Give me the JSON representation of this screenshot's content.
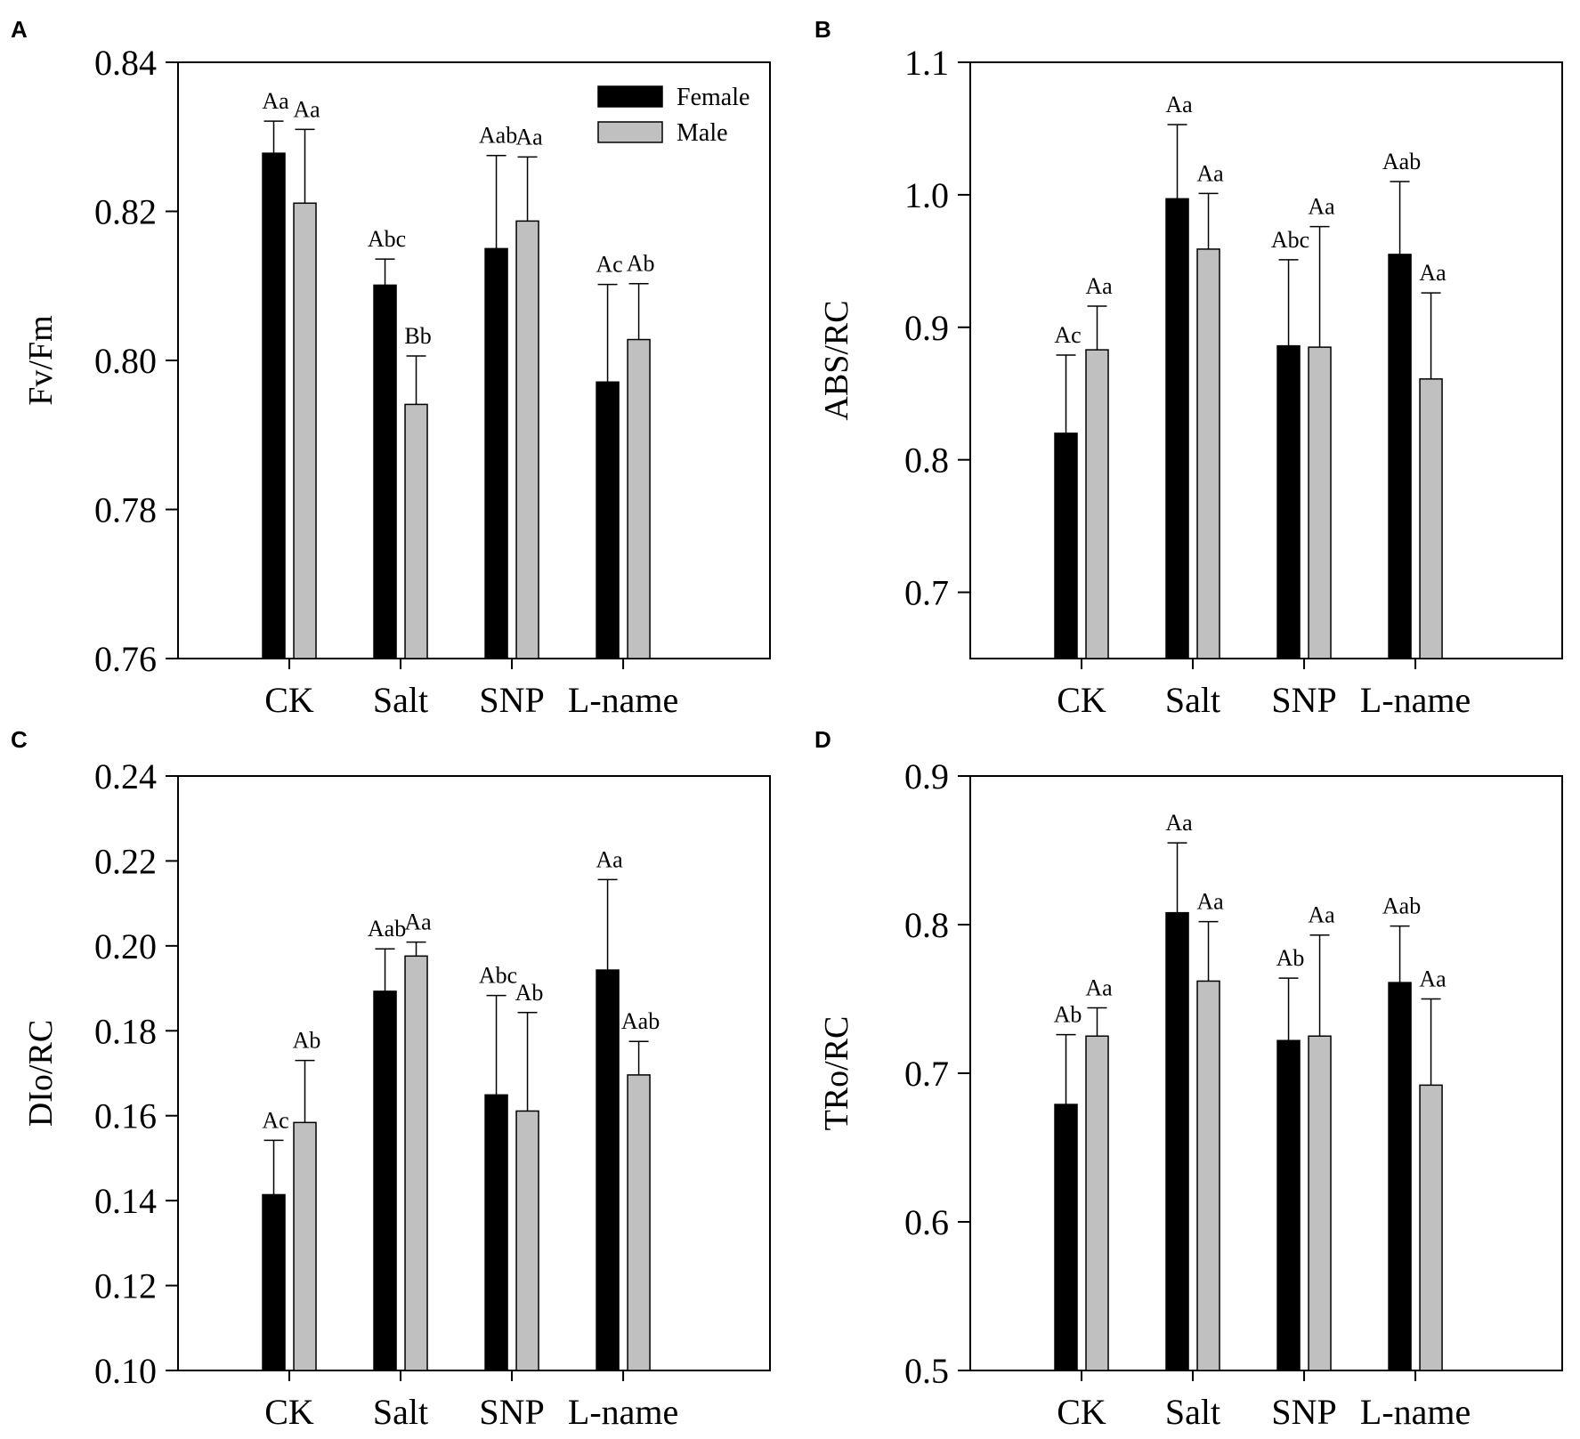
{
  "colors": {
    "female": "#000000",
    "male": "#c0c0c0",
    "axis": "#000000"
  },
  "chart_data": [
    {
      "id": "A",
      "type": "bar",
      "panel_label": "A",
      "ylabel": "Fv/Fm",
      "categories": [
        "CK",
        "Salt",
        "SNP",
        "L-name"
      ],
      "ylim": [
        0.76,
        0.84
      ],
      "yticks": [
        0.76,
        0.78,
        0.8,
        0.82,
        0.84
      ],
      "ytick_labels": [
        "0.76",
        "0.78",
        "0.80",
        "0.82",
        "0.84"
      ],
      "legend": {
        "position": "top-right",
        "entries": [
          "Female",
          "Male"
        ]
      },
      "series": [
        {
          "name": "Female",
          "values": [
            0.8278,
            0.8101,
            0.815,
            0.7971
          ],
          "errors": [
            0.0043,
            0.0035,
            0.0125,
            0.0131
          ],
          "labels": [
            "Aa",
            "Abc",
            "Aab",
            "Ac"
          ]
        },
        {
          "name": "Male",
          "values": [
            0.8211,
            0.7941,
            0.8187,
            0.8028
          ],
          "errors": [
            0.0099,
            0.0065,
            0.0086,
            0.0075
          ],
          "labels": [
            "Aa",
            "Bb",
            "Aa",
            "Ab"
          ]
        }
      ]
    },
    {
      "id": "B",
      "type": "bar",
      "panel_label": "B",
      "ylabel": "ABS/RC",
      "categories": [
        "CK",
        "Salt",
        "SNP",
        "L-name"
      ],
      "ylim": [
        0.65,
        1.1
      ],
      "yticks": [
        0.7,
        0.8,
        0.9,
        1.0,
        1.1
      ],
      "ytick_labels": [
        "0.7",
        "0.8",
        "0.9",
        "1.0",
        "1.1"
      ],
      "series": [
        {
          "name": "Female",
          "values": [
            0.82,
            0.997,
            0.886,
            0.955
          ],
          "errors": [
            0.059,
            0.056,
            0.065,
            0.055
          ],
          "labels": [
            "Ac",
            "Aa",
            "Abc",
            "Aab"
          ]
        },
        {
          "name": "Male",
          "values": [
            0.883,
            0.959,
            0.885,
            0.861
          ],
          "errors": [
            0.033,
            0.042,
            0.091,
            0.065
          ],
          "labels": [
            "Aa",
            "Aa",
            "Aa",
            "Aa"
          ]
        }
      ]
    },
    {
      "id": "C",
      "type": "bar",
      "panel_label": "C",
      "ylabel": "DIo/RC",
      "categories": [
        "CK",
        "Salt",
        "SNP",
        "L-name"
      ],
      "ylim": [
        0.1,
        0.24
      ],
      "yticks": [
        0.1,
        0.12,
        0.14,
        0.16,
        0.18,
        0.2,
        0.22,
        0.24
      ],
      "ytick_labels": [
        "0.10",
        "0.12",
        "0.14",
        "0.16",
        "0.18",
        "0.20",
        "0.22",
        "0.24"
      ],
      "series": [
        {
          "name": "Female",
          "values": [
            0.1414,
            0.1893,
            0.1649,
            0.1943
          ],
          "errors": [
            0.0128,
            0.01,
            0.0234,
            0.0213
          ],
          "labels": [
            "Ac",
            "Aab",
            "Abc",
            "Aa"
          ]
        },
        {
          "name": "Male",
          "values": [
            0.1584,
            0.1976,
            0.1611,
            0.1696
          ],
          "errors": [
            0.0146,
            0.0033,
            0.0232,
            0.0079
          ],
          "labels": [
            "Ab",
            "Aa",
            "Ab",
            "Aab"
          ]
        }
      ]
    },
    {
      "id": "D",
      "type": "bar",
      "panel_label": "D",
      "ylabel": "TRo/RC",
      "categories": [
        "CK",
        "Salt",
        "SNP",
        "L-name"
      ],
      "ylim": [
        0.5,
        0.9
      ],
      "yticks": [
        0.5,
        0.6,
        0.7,
        0.8,
        0.9
      ],
      "ytick_labels": [
        "0.5",
        "0.6",
        "0.7",
        "0.8",
        "0.9"
      ],
      "series": [
        {
          "name": "Female",
          "values": [
            0.679,
            0.808,
            0.722,
            0.761
          ],
          "errors": [
            0.047,
            0.047,
            0.042,
            0.038
          ],
          "labels": [
            "Ab",
            "Aa",
            "Ab",
            "Aab"
          ]
        },
        {
          "name": "Male",
          "values": [
            0.725,
            0.762,
            0.725,
            0.692
          ],
          "errors": [
            0.019,
            0.04,
            0.068,
            0.058
          ],
          "labels": [
            "Aa",
            "Aa",
            "Aa",
            "Aa"
          ]
        }
      ]
    }
  ]
}
